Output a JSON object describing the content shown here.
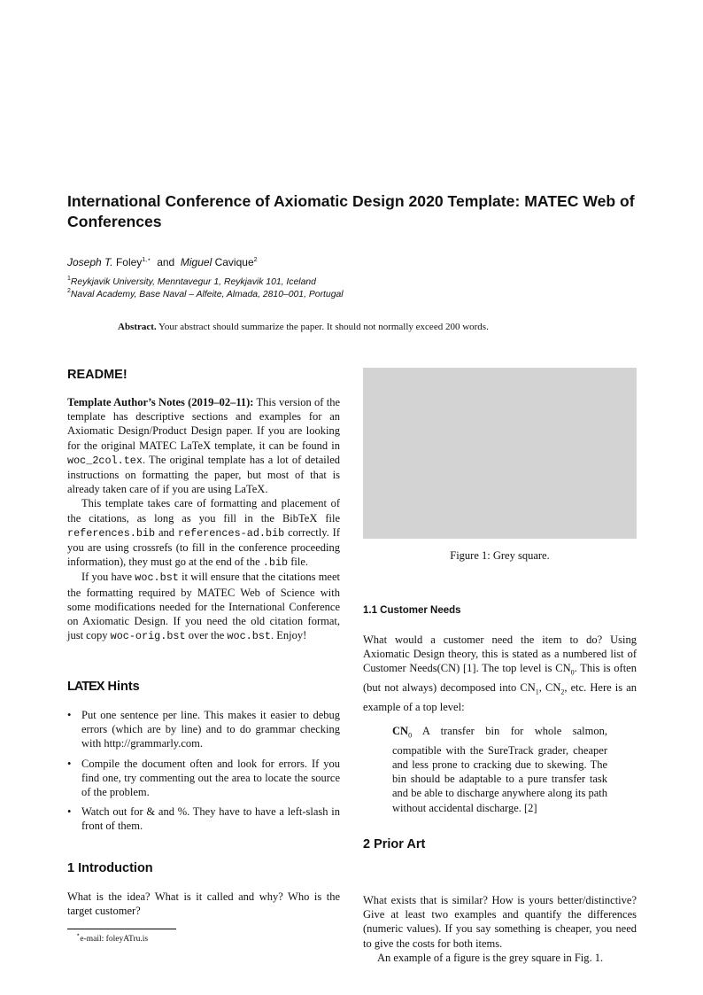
{
  "title": "International Conference of Axiomatic Design 2020 Template: MATEC Web of Conferences",
  "authors": {
    "a1_first": "Joseph T.",
    "a1_last": "Foley",
    "a1_sup": "1,⋆",
    "and": "and",
    "a2_first": "Miguel",
    "a2_last": "Cavique",
    "a2_sup": "2"
  },
  "affiliations": [
    {
      "num": "1",
      "text": "Reykjavik University, Menntavegur 1, Reykjavik 101, Iceland"
    },
    {
      "num": "2",
      "text": "Naval Academy, Base Naval – Alfeite, Almada, 2810–001, Portugal"
    }
  ],
  "abstract": {
    "label": "Abstract.",
    "text": "Your abstract should summarize the paper. It should not normally exceed 200 words."
  },
  "readme": {
    "heading": "README!",
    "p1_bold": "Template Author’s Notes (2019–02–11):",
    "p1a": " This version of the template has descriptive sections and examples for an Axiomatic Design/Product Design paper. If you are looking for the original MATEC LaTeX template, it can be found in ",
    "p1_code": "woc_2col.tex",
    "p1b": ". The original template has a lot of detailed instructions on formatting the paper, but most of that is already taken care of if you are using LaTeX.",
    "p2a": "This template takes care of formatting and placement of the citations, as long as you fill in the BibTeX file ",
    "p2_code1": "references.bib",
    "p2b": " and ",
    "p2_code2": "references-ad.bib",
    "p2c": " correctly. If you are using crossrefs (to fill in the conference proceeding information), they must go at the end of the ",
    "p2_code3": ".bib",
    "p2d": " file.",
    "p3a": "If you have ",
    "p3_code1": "woc.bst",
    "p3b": " it will ensure that the citations meet the formatting required by MATEC Web of Science with some modifications needed for the International Conference on Axiomatic Design. If you need the old citation format, just copy ",
    "p3_code2": "woc-orig.bst",
    "p3c": " over the ",
    "p3_code3": "woc.bst",
    "p3d": ". Enjoy!"
  },
  "hints": {
    "heading_logo": "LATEX",
    "heading": "Hints",
    "items": [
      "Put one sentence per line. This makes it easier to debug errors (which are by line) and to do grammar checking with http://grammarly.com.",
      "Compile the document often and look for errors. If you find one, try commenting out the area to locate the source of the problem.",
      "Watch out for & and %. They have to have a left-slash in front of them."
    ]
  },
  "intro": {
    "heading": "1  Introduction",
    "text": "What is the idea? What is it called and why? Who is the target customer?"
  },
  "footnote": {
    "mark": "⋆",
    "text": "e-mail: foleyATru.is"
  },
  "figure": {
    "caption": "Figure 1: Grey square.",
    "color": "#d3d3d3"
  },
  "customer_needs": {
    "heading": "1.1  Customer Needs",
    "t1": "What would a customer need the item to do? Using Axiomatic Design theory, this is stated as a numbered list of Customer Needs(CN) [1]. The top level is CN",
    "s0": "0",
    "t2": ". This is often (but not always) decomposed into CN",
    "s1": "1",
    "t3": ", CN",
    "s2": "2",
    "t4": ", etc. Here is an example of a top level:",
    "cn_label": "CN",
    "cn_sub": "0",
    "cn_text": " A transfer bin for whole salmon, compatible with the SureTrack grader, cheaper and less prone to cracking due to skewing. The bin should be adaptable to a pure transfer task and be able to discharge anywhere along its path without accidental discharge. [2]"
  },
  "prior_art": {
    "heading": "2  Prior Art",
    "p1": "What exists that is similar? How is yours better/distinctive? Give at least two examples and quantify the differences (numeric values). If you say something is cheaper, you need to give the costs for both items.",
    "p2": "An example of a figure is the grey square in Fig. 1."
  }
}
